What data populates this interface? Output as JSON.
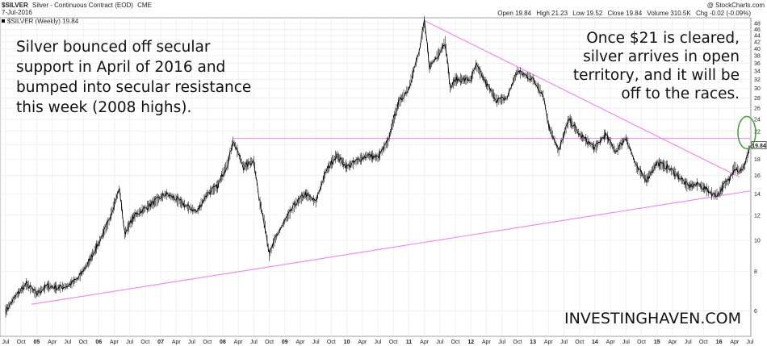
{
  "header": {
    "symbol": "$SILVER",
    "name": "Silver - Continuous Contract (EOD)",
    "exchange": "CME",
    "date": "7-Jul-2016",
    "credit": "@ StockCharts.com",
    "ohlc": {
      "open_label": "Open",
      "open": "19.84",
      "high_label": "High",
      "high": "21.23",
      "low_label": "Low",
      "low": "19.52",
      "close_label": "Close",
      "close": "19.84",
      "volume_label": "Volume",
      "volume": "310.5K",
      "chg_label": "Chg",
      "chg": "-0.02 (-0.09%)"
    }
  },
  "legend": "$SILVER (Weekly) 19.84",
  "last_price_tag": "19.84",
  "annotations": {
    "left": [
      "Silver bounced off secular",
      "support in April of 2016 and",
      "bumped into secular resistance",
      "this week (2008 highs)."
    ],
    "right": [
      "Once $21 is cleared,",
      "silver arrives in open",
      "territory, and it will be",
      "off to the races."
    ]
  },
  "watermark": "INVESTINGHAVEN.COM",
  "colors": {
    "price": "#000000",
    "trendlines": "#ee82ee",
    "highlight": "#3aa03a",
    "grid": "#e8e8e8",
    "text": "#111111"
  },
  "chart_data": {
    "type": "line",
    "title": "$SILVER (Weekly) 19.84",
    "xlabel": "",
    "ylabel": "",
    "x_range": [
      "2004-07",
      "2016-07"
    ],
    "ylim": [
      5,
      50
    ],
    "y_ticks": [
      6,
      8,
      10,
      12,
      14,
      16,
      18,
      20,
      22,
      24,
      26,
      28,
      30,
      32,
      34,
      36,
      38,
      40,
      42,
      44,
      46,
      48
    ],
    "x_ticks": [
      {
        "x": "2004-07",
        "label": "Jul"
      },
      {
        "x": "2004-10",
        "label": "Oct"
      },
      {
        "x": "2005-01",
        "label": "05",
        "year": true
      },
      {
        "x": "2005-04",
        "label": "Apr"
      },
      {
        "x": "2005-07",
        "label": "Jul"
      },
      {
        "x": "2005-10",
        "label": "Oct"
      },
      {
        "x": "2006-01",
        "label": "06",
        "year": true
      },
      {
        "x": "2006-04",
        "label": "Apr"
      },
      {
        "x": "2006-07",
        "label": "Jul"
      },
      {
        "x": "2006-10",
        "label": "Oct"
      },
      {
        "x": "2007-01",
        "label": "07",
        "year": true
      },
      {
        "x": "2007-04",
        "label": "Apr"
      },
      {
        "x": "2007-07",
        "label": "Jul"
      },
      {
        "x": "2007-10",
        "label": "Oct"
      },
      {
        "x": "2008-01",
        "label": "08",
        "year": true
      },
      {
        "x": "2008-04",
        "label": "Apr"
      },
      {
        "x": "2008-07",
        "label": "Jul"
      },
      {
        "x": "2008-10",
        "label": "Oct"
      },
      {
        "x": "2009-01",
        "label": "09",
        "year": true
      },
      {
        "x": "2009-04",
        "label": "Apr"
      },
      {
        "x": "2009-07",
        "label": "Jul"
      },
      {
        "x": "2009-10",
        "label": "Oct"
      },
      {
        "x": "2010-01",
        "label": "10",
        "year": true
      },
      {
        "x": "2010-04",
        "label": "Apr"
      },
      {
        "x": "2010-07",
        "label": "Jul"
      },
      {
        "x": "2010-10",
        "label": "Oct"
      },
      {
        "x": "2011-01",
        "label": "11",
        "year": true
      },
      {
        "x": "2011-04",
        "label": "Apr"
      },
      {
        "x": "2011-07",
        "label": "Jul"
      },
      {
        "x": "2011-10",
        "label": "Oct"
      },
      {
        "x": "2012-01",
        "label": "12",
        "year": true
      },
      {
        "x": "2012-04",
        "label": "Apr"
      },
      {
        "x": "2012-07",
        "label": "Jul"
      },
      {
        "x": "2012-10",
        "label": "Oct"
      },
      {
        "x": "2013-01",
        "label": "13",
        "year": true
      },
      {
        "x": "2013-04",
        "label": "Apr"
      },
      {
        "x": "2013-07",
        "label": "Jul"
      },
      {
        "x": "2013-10",
        "label": "Oct"
      },
      {
        "x": "2014-01",
        "label": "14",
        "year": true
      },
      {
        "x": "2014-04",
        "label": "Apr"
      },
      {
        "x": "2014-07",
        "label": "Jul"
      },
      {
        "x": "2014-10",
        "label": "Oct"
      },
      {
        "x": "2015-01",
        "label": "15",
        "year": true
      },
      {
        "x": "2015-04",
        "label": "Apr"
      },
      {
        "x": "2015-07",
        "label": "Jul"
      },
      {
        "x": "2015-10",
        "label": "Oct"
      },
      {
        "x": "2016-01",
        "label": "16",
        "year": true
      },
      {
        "x": "2016-04",
        "label": "Apr"
      },
      {
        "x": "2016-07",
        "label": "Jul"
      }
    ],
    "series": [
      {
        "name": "$SILVER (Weekly) 19.84",
        "x": [
          "2004-07",
          "2004-09",
          "2004-11",
          "2005-01",
          "2005-03",
          "2005-05",
          "2005-07",
          "2005-09",
          "2005-11",
          "2006-01",
          "2006-03",
          "2006-05",
          "2006-06",
          "2006-08",
          "2006-10",
          "2006-12",
          "2007-02",
          "2007-04",
          "2007-06",
          "2007-08",
          "2007-10",
          "2007-12",
          "2008-02",
          "2008-03",
          "2008-05",
          "2008-07",
          "2008-08",
          "2008-09",
          "2008-10",
          "2008-11",
          "2009-01",
          "2009-03",
          "2009-05",
          "2009-07",
          "2009-09",
          "2009-11",
          "2010-01",
          "2010-03",
          "2010-05",
          "2010-07",
          "2010-09",
          "2010-11",
          "2011-01",
          "2011-03",
          "2011-04",
          "2011-05",
          "2011-07",
          "2011-08",
          "2011-09",
          "2011-10",
          "2012-01",
          "2012-02",
          "2012-04",
          "2012-06",
          "2012-08",
          "2012-10",
          "2013-01",
          "2013-03",
          "2013-04",
          "2013-06",
          "2013-08",
          "2013-10",
          "2014-01",
          "2014-03",
          "2014-05",
          "2014-07",
          "2014-09",
          "2014-11",
          "2015-01",
          "2015-03",
          "2015-05",
          "2015-07",
          "2015-09",
          "2015-11",
          "2015-12",
          "2016-01",
          "2016-02",
          "2016-03",
          "2016-04",
          "2016-05",
          "2016-06",
          "2016-07"
        ],
        "values": [
          6.0,
          6.7,
          7.3,
          6.8,
          7.2,
          7.1,
          7.2,
          7.6,
          8.5,
          9.8,
          11.5,
          14.5,
          10.5,
          12.0,
          12.6,
          13.3,
          14.0,
          13.5,
          12.8,
          12.3,
          14.0,
          14.8,
          17.5,
          20.5,
          17.0,
          17.8,
          13.5,
          11.5,
          9.0,
          10.0,
          11.5,
          13.0,
          14.0,
          13.2,
          16.5,
          18.5,
          17.0,
          17.8,
          18.5,
          18.2,
          20.5,
          27.0,
          30.0,
          39.0,
          48.5,
          35.0,
          39.0,
          42.0,
          30.0,
          32.0,
          32.0,
          35.5,
          31.0,
          27.5,
          28.0,
          34.0,
          32.0,
          28.5,
          23.0,
          19.0,
          24.0,
          21.5,
          19.5,
          21.5,
          19.0,
          21.0,
          17.0,
          15.5,
          17.5,
          17.0,
          16.0,
          14.8,
          15.0,
          14.3,
          13.9,
          14.0,
          15.0,
          15.5,
          17.0,
          16.5,
          17.2,
          19.84
        ]
      }
    ],
    "trendlines": [
      {
        "name": "secular resistance",
        "from": {
          "x": "2008-03",
          "y": 20.9
        },
        "to": {
          "x": "2016-07",
          "y": 20.9
        }
      },
      {
        "name": "downtrend",
        "from": {
          "x": "2011-04",
          "y": 49.0
        },
        "to": {
          "x": "2016-05",
          "y": 15.8
        }
      },
      {
        "name": "secular support",
        "from": {
          "x": "2004-12",
          "y": 6.3
        },
        "to": {
          "x": "2016-07",
          "y": 14.3
        }
      }
    ],
    "highlight_ellipse": {
      "x": "2016-07",
      "y": 21.3
    }
  }
}
